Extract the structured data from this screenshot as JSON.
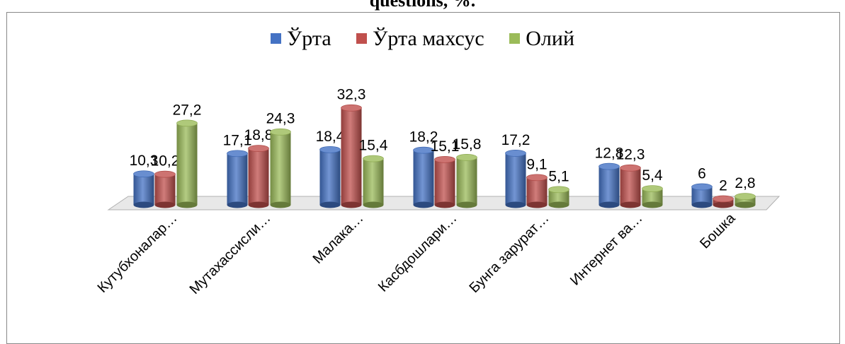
{
  "chart_data": {
    "type": "bar",
    "title": "questions, %.",
    "categories": [
      "Кутубхоналар…",
      "Мутахассисли…",
      "Малака…",
      "Касбдошлари…",
      "Бунга зарурат…",
      "Интернет ва…",
      "Бошка"
    ],
    "series": [
      {
        "name": "Ўрта",
        "color": "#4472c4",
        "values": [
          10.3,
          17.1,
          18.4,
          18.2,
          17.2,
          12.8,
          6
        ]
      },
      {
        "name": "Ўрта махсус",
        "color": "#c0504d",
        "values": [
          10.2,
          18.8,
          32.3,
          15.1,
          9.1,
          12.3,
          2
        ]
      },
      {
        "name": "Олий",
        "color": "#9bbb59",
        "values": [
          27.2,
          24.3,
          15.4,
          15.8,
          5.1,
          5.4,
          2.8
        ]
      }
    ],
    "data_labels": [
      [
        "10,3",
        "17,1",
        "18,4",
        "18,2",
        "17,2",
        "12,8",
        "6"
      ],
      [
        "10,2",
        "18,8",
        "32,3",
        "15,1",
        "9,1",
        "12,3",
        "2"
      ],
      [
        "27,2",
        "24,3",
        "15,4",
        "15,8",
        "5,1",
        "5,4",
        "2,8"
      ]
    ],
    "legend_position": "top",
    "grid": false,
    "style": "3d-cylinder"
  }
}
